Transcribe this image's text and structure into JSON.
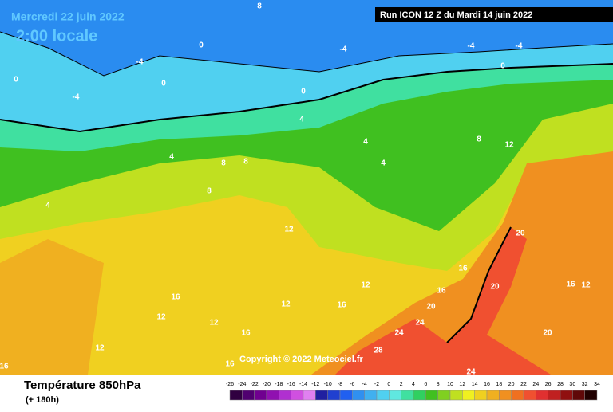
{
  "header": {
    "date": "Mercredi 22 juin 2022",
    "time": "2:00 locale",
    "run": "Run ICON 12 Z du Mardi 14 juin 2022"
  },
  "copyright": "Copyright © 2022 Meteociel.fr",
  "footer": {
    "title": "Température 850hPa",
    "lead": "(+ 180h)"
  },
  "legend": {
    "ticks": [
      -26,
      -24,
      -22,
      -20,
      -18,
      -16,
      -14,
      -12,
      -10,
      -8,
      -6,
      -4,
      -2,
      0,
      2,
      4,
      6,
      8,
      10,
      12,
      14,
      16,
      18,
      20,
      22,
      24,
      26,
      28,
      30,
      32,
      34
    ],
    "colors": [
      "#300040",
      "#500070",
      "#700090",
      "#9010b0",
      "#b030d0",
      "#d050e0",
      "#e080f0",
      "#2020a0",
      "#2040d0",
      "#2060f0",
      "#3090f0",
      "#40b0f0",
      "#50d0f0",
      "#60e8e0",
      "#40e0a0",
      "#30d060",
      "#40c020",
      "#80d020",
      "#c0e020",
      "#f0f020",
      "#f0d020",
      "#f0b020",
      "#f09020",
      "#f07020",
      "#f05030",
      "#e03030",
      "#c02020",
      "#901010",
      "#600808",
      "#200000"
    ]
  },
  "map_labels": [
    8,
    -4,
    0,
    -4,
    0,
    -4,
    -4,
    0,
    -4,
    0,
    0,
    4,
    4,
    8,
    8,
    4,
    4,
    8,
    12,
    8,
    4,
    12,
    16,
    12,
    12,
    16,
    12,
    12,
    16,
    12,
    16,
    24,
    24,
    28,
    20,
    20,
    16,
    12,
    20,
    24,
    16,
    16,
    20,
    16
  ]
}
